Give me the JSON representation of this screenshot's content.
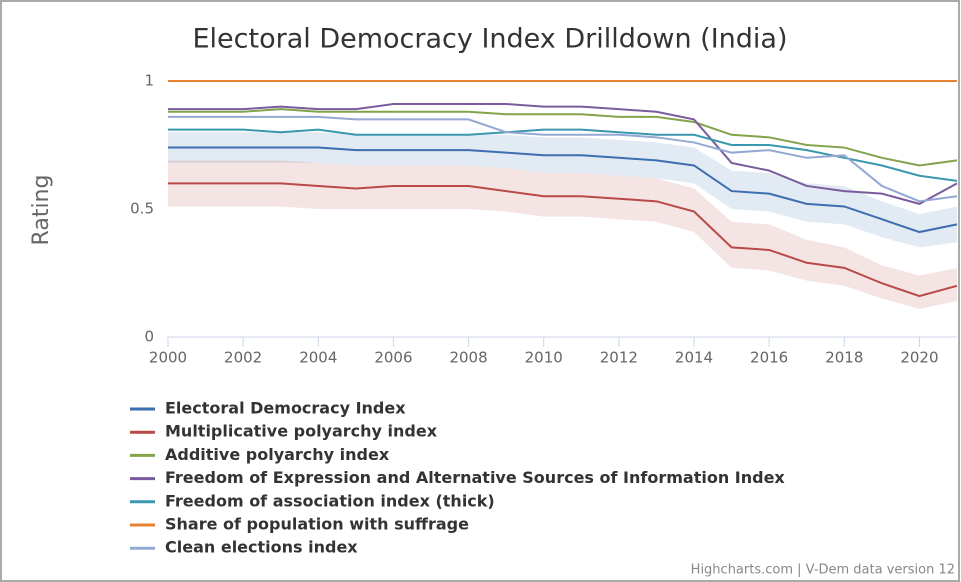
{
  "chart_data": {
    "type": "line",
    "title": "Electoral Democracy Index Drilldown (India)",
    "y_label": "Rating",
    "credits": "Highcharts.com | V-Dem data version 12",
    "x": [
      2000,
      2001,
      2002,
      2003,
      2004,
      2005,
      2006,
      2007,
      2008,
      2009,
      2010,
      2011,
      2012,
      2013,
      2014,
      2015,
      2016,
      2017,
      2018,
      2019,
      2020,
      2021
    ],
    "xlim": [
      2000,
      2021
    ],
    "xticks": [
      2000,
      2002,
      2004,
      2006,
      2008,
      2010,
      2012,
      2014,
      2016,
      2018,
      2020
    ],
    "ylim": [
      0,
      1
    ],
    "yticks": [
      0,
      0.5,
      1
    ],
    "legend": "bottom-left",
    "series": [
      {
        "name": "Electoral Democracy Index",
        "color": "#3d6fb0",
        "values": [
          0.74,
          0.74,
          0.74,
          0.74,
          0.74,
          0.73,
          0.73,
          0.73,
          0.73,
          0.72,
          0.71,
          0.71,
          0.7,
          0.69,
          0.67,
          0.57,
          0.56,
          0.52,
          0.51,
          0.46,
          0.41,
          0.44
        ],
        "low": [
          0.68,
          0.68,
          0.68,
          0.68,
          0.68,
          0.67,
          0.67,
          0.67,
          0.67,
          0.66,
          0.64,
          0.64,
          0.63,
          0.62,
          0.6,
          0.5,
          0.49,
          0.45,
          0.44,
          0.39,
          0.35,
          0.37
        ],
        "high": [
          0.8,
          0.8,
          0.8,
          0.8,
          0.8,
          0.79,
          0.79,
          0.79,
          0.79,
          0.79,
          0.78,
          0.78,
          0.77,
          0.76,
          0.74,
          0.65,
          0.64,
          0.6,
          0.59,
          0.53,
          0.48,
          0.51
        ]
      },
      {
        "name": "Multiplicative polyarchy index",
        "color": "#b84a47",
        "values": [
          0.6,
          0.6,
          0.6,
          0.6,
          0.59,
          0.58,
          0.59,
          0.59,
          0.59,
          0.57,
          0.55,
          0.55,
          0.54,
          0.53,
          0.49,
          0.35,
          0.34,
          0.29,
          0.27,
          0.21,
          0.16,
          0.2
        ],
        "low": [
          0.51,
          0.51,
          0.51,
          0.51,
          0.5,
          0.5,
          0.5,
          0.5,
          0.5,
          0.49,
          0.47,
          0.47,
          0.46,
          0.45,
          0.41,
          0.27,
          0.26,
          0.22,
          0.2,
          0.15,
          0.11,
          0.14
        ],
        "high": [
          0.69,
          0.69,
          0.69,
          0.69,
          0.68,
          0.67,
          0.67,
          0.67,
          0.67,
          0.66,
          0.64,
          0.64,
          0.63,
          0.62,
          0.58,
          0.45,
          0.44,
          0.38,
          0.35,
          0.28,
          0.24,
          0.27
        ]
      },
      {
        "name": "Additive polyarchy index",
        "color": "#82a34b",
        "values": [
          0.88,
          0.88,
          0.88,
          0.89,
          0.88,
          0.88,
          0.88,
          0.88,
          0.88,
          0.87,
          0.87,
          0.87,
          0.86,
          0.86,
          0.84,
          0.79,
          0.78,
          0.75,
          0.74,
          0.7,
          0.67,
          0.69
        ]
      },
      {
        "name": "Freedom of Expression and Alternative Sources of Information Index",
        "color": "#7a5c9e",
        "values": [
          0.89,
          0.89,
          0.89,
          0.9,
          0.89,
          0.89,
          0.91,
          0.91,
          0.91,
          0.91,
          0.9,
          0.9,
          0.89,
          0.88,
          0.85,
          0.68,
          0.65,
          0.59,
          0.57,
          0.56,
          0.52,
          0.6
        ]
      },
      {
        "name": "Freedom of association index (thick)",
        "color": "#3a97ae",
        "values": [
          0.81,
          0.81,
          0.81,
          0.8,
          0.81,
          0.79,
          0.79,
          0.79,
          0.79,
          0.8,
          0.81,
          0.81,
          0.8,
          0.79,
          0.79,
          0.75,
          0.75,
          0.73,
          0.7,
          0.67,
          0.63,
          0.61
        ]
      },
      {
        "name": "Share of population with suffrage",
        "color": "#e8822f",
        "values": [
          1,
          1,
          1,
          1,
          1,
          1,
          1,
          1,
          1,
          1,
          1,
          1,
          1,
          1,
          1,
          1,
          1,
          1,
          1,
          1,
          1,
          1
        ]
      },
      {
        "name": "Clean elections index",
        "color": "#93a9d4",
        "values": [
          0.86,
          0.86,
          0.86,
          0.86,
          0.86,
          0.85,
          0.85,
          0.85,
          0.85,
          0.8,
          0.79,
          0.79,
          0.79,
          0.78,
          0.76,
          0.72,
          0.73,
          0.7,
          0.71,
          0.59,
          0.53,
          0.55
        ]
      }
    ]
  }
}
